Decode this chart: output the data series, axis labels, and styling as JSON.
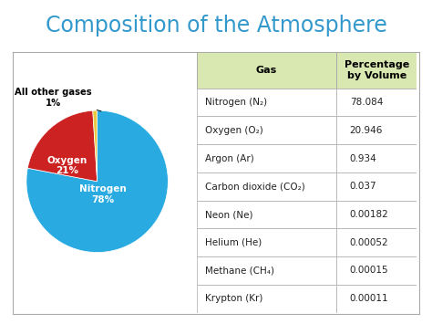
{
  "title": "Composition of the Atmosphere",
  "title_color": "#3399CC",
  "title_fontsize": 17,
  "bg_color": "#FFFFFF",
  "panel_bg": "#FFFFFF",
  "panel_border": "#AAAAAA",
  "pie_slices": [
    78,
    21,
    1
  ],
  "pie_colors": [
    "#29ABE2",
    "#CC2222",
    "#E8C840"
  ],
  "table_header_bg": "#D8E8B0",
  "table_header_color": "#000000",
  "table_row_bg": "#FFFFFF",
  "table_border_color": "#AAAAAA",
  "table_header": [
    "Gas",
    "Percentage\nby Volume"
  ],
  "table_rows": [
    [
      "Nitrogen (N₂)",
      "78.084"
    ],
    [
      "Oxygen (O₂)",
      "20.946"
    ],
    [
      "Argon (Ar)",
      "0.934"
    ],
    [
      "Carbon dioxide (CO₂)",
      "0.037"
    ],
    [
      "Neon (Ne)",
      "0.00182"
    ],
    [
      "Helium (He)",
      "0.00052"
    ],
    [
      "Methane (CH₄)",
      "0.00015"
    ],
    [
      "Krypton (Kr)",
      "0.00011"
    ]
  ]
}
